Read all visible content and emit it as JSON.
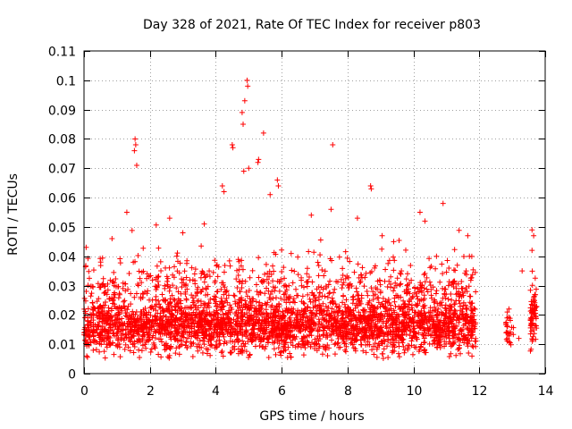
{
  "chart_data": {
    "type": "scatter",
    "title": "Day 328 of 2021, Rate Of TEC Index for receiver p803",
    "xlabel": "GPS time / hours",
    "ylabel": "ROTI / TECUs",
    "xlim": [
      0,
      14
    ],
    "ylim": [
      0,
      0.11
    ],
    "grid": true,
    "marker": "+",
    "marker_color": "#ff0000",
    "x_ticks": [
      0,
      2,
      4,
      6,
      8,
      10,
      12,
      14
    ],
    "x_tick_labels": [
      "0",
      "2",
      "4",
      "6",
      "8",
      "10",
      "12",
      "14"
    ],
    "y_ticks": [
      0,
      0.01,
      0.02,
      0.03,
      0.04,
      0.05,
      0.06,
      0.07,
      0.08,
      0.09,
      0.1,
      0.11
    ],
    "y_tick_labels": [
      "0",
      "0.01",
      "0.02",
      "0.03",
      "0.04",
      "0.05",
      "0.06",
      "0.07",
      "0.08",
      "0.09",
      "0.1",
      "0.11"
    ],
    "series": [
      {
        "name": "ROTI",
        "segments": [
          {
            "x_range": [
              0.0,
              11.9
            ],
            "y_center": 0.016,
            "y_spread": 0.008,
            "count": 2600
          },
          {
            "x_range": [
              0.0,
              11.9
            ],
            "y_center": 0.027,
            "y_spread": 0.012,
            "count": 900
          },
          {
            "x_range": [
              12.8,
              13.05
            ],
            "y_center": 0.015,
            "y_spread": 0.006,
            "count": 25
          },
          {
            "x_range": [
              13.55,
              13.75
            ],
            "y_center": 0.02,
            "y_spread": 0.01,
            "count": 70
          }
        ],
        "highlights": [
          {
            "x": 1.55,
            "y": 0.08
          },
          {
            "x": 1.57,
            "y": 0.078
          },
          {
            "x": 1.53,
            "y": 0.076
          },
          {
            "x": 1.6,
            "y": 0.071
          },
          {
            "x": 4.95,
            "y": 0.1
          },
          {
            "x": 4.97,
            "y": 0.098
          },
          {
            "x": 4.88,
            "y": 0.093
          },
          {
            "x": 4.8,
            "y": 0.089
          },
          {
            "x": 4.83,
            "y": 0.085
          },
          {
            "x": 5.45,
            "y": 0.082
          },
          {
            "x": 4.5,
            "y": 0.078
          },
          {
            "x": 4.52,
            "y": 0.077
          },
          {
            "x": 5.3,
            "y": 0.073
          },
          {
            "x": 5.28,
            "y": 0.072
          },
          {
            "x": 7.55,
            "y": 0.078
          },
          {
            "x": 4.85,
            "y": 0.069
          },
          {
            "x": 5.0,
            "y": 0.07
          },
          {
            "x": 5.87,
            "y": 0.066
          },
          {
            "x": 5.9,
            "y": 0.064
          },
          {
            "x": 8.7,
            "y": 0.064
          },
          {
            "x": 8.72,
            "y": 0.063
          },
          {
            "x": 4.2,
            "y": 0.064
          },
          {
            "x": 4.25,
            "y": 0.062
          },
          {
            "x": 5.65,
            "y": 0.061
          },
          {
            "x": 10.9,
            "y": 0.058
          },
          {
            "x": 13.6,
            "y": 0.049
          },
          {
            "x": 13.65,
            "y": 0.047
          },
          {
            "x": 13.6,
            "y": 0.042
          },
          {
            "x": 13.3,
            "y": 0.035
          },
          {
            "x": 12.9,
            "y": 0.022
          },
          {
            "x": 12.85,
            "y": 0.021
          },
          {
            "x": 13.2,
            "y": 0.012
          },
          {
            "x": 11.65,
            "y": 0.047
          },
          {
            "x": 11.7,
            "y": 0.04
          },
          {
            "x": 11.6,
            "y": 0.035
          },
          {
            "x": 9.4,
            "y": 0.045
          },
          {
            "x": 10.2,
            "y": 0.055
          },
          {
            "x": 10.35,
            "y": 0.052
          },
          {
            "x": 6.9,
            "y": 0.054
          },
          {
            "x": 7.5,
            "y": 0.056
          },
          {
            "x": 8.3,
            "y": 0.053
          },
          {
            "x": 2.6,
            "y": 0.053
          },
          {
            "x": 1.3,
            "y": 0.055
          },
          {
            "x": 0.85,
            "y": 0.046
          },
          {
            "x": 3.65,
            "y": 0.051
          },
          {
            "x": 3.0,
            "y": 0.048
          },
          {
            "x": 9.05,
            "y": 0.047
          },
          {
            "x": 10.7,
            "y": 0.04
          }
        ]
      }
    ]
  }
}
